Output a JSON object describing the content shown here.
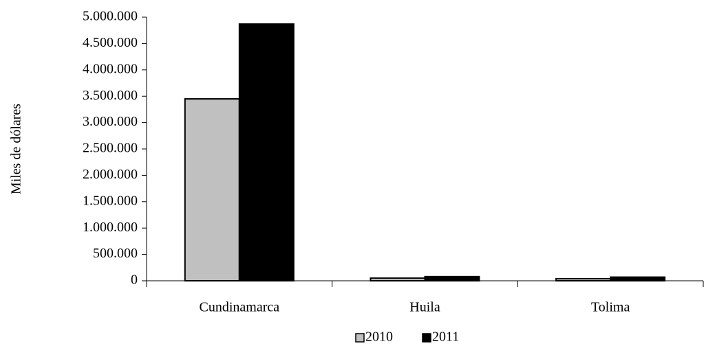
{
  "chart_data": {
    "type": "bar",
    "y_label": "Miles de dólares",
    "categories": [
      "Cundinamarca",
      "Huila",
      "Tolima"
    ],
    "series": [
      {
        "name": "2010",
        "color": "#c0c0c0",
        "values": [
          3450000,
          50000,
          40000
        ]
      },
      {
        "name": "2011",
        "color": "#000000",
        "values": [
          4870000,
          80000,
          70000
        ]
      }
    ],
    "ylim": [
      0,
      5000000
    ],
    "yticks": [
      0,
      {
        "value": 500000,
        "label": "500.000"
      },
      {
        "value": 1000000,
        "label": "1.000.000"
      },
      {
        "value": 1500000,
        "label": "1.500.000"
      },
      {
        "value": 2000000,
        "label": "2.000.000"
      },
      {
        "value": 2500000,
        "label": "2.500.000"
      },
      {
        "value": 3000000,
        "label": "3.000.000"
      },
      {
        "value": 3500000,
        "label": "3.500.000"
      },
      {
        "value": 4000000,
        "label": "4.000.000"
      },
      {
        "value": 4500000,
        "label": "4.500.000"
      },
      {
        "value": 5000000,
        "label": "5.000.000"
      }
    ],
    "legend": "bottom"
  }
}
